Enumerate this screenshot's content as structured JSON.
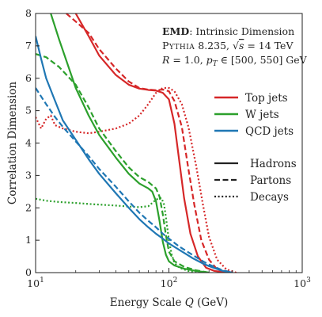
{
  "chart_data": {
    "type": "line",
    "title": "",
    "xlabel": "Energy Scale Q (GeV)",
    "ylabel": "Correlation Dimension",
    "xscale": "log",
    "xlim": [
      10,
      1000
    ],
    "ylim": [
      0,
      8
    ],
    "xticks": [
      10,
      100,
      1000
    ],
    "xtick_labels": [
      {
        "base": "10",
        "exp": "1"
      },
      {
        "base": "10",
        "exp": "2"
      },
      {
        "base": "10",
        "exp": "3"
      }
    ],
    "yticks": [
      0,
      1,
      2,
      3,
      4,
      5,
      6,
      7,
      8
    ],
    "grid": false,
    "annotation": {
      "line1_bold": "EMD",
      "line1_rest": ": Intrinsic Dimension",
      "line2": "Pythia 8.235, √s = 14 TeV",
      "line3": "R = 1.0, pT ∈ [500, 550] GeV"
    },
    "legend_jets": {
      "placement": "right",
      "entries": [
        {
          "label": "Top jets",
          "color": "#d62728"
        },
        {
          "label": "W jets",
          "color": "#2ca02c"
        },
        {
          "label": "QCD jets",
          "color": "#1f77b4"
        }
      ]
    },
    "legend_levels": {
      "placement": "right",
      "entries": [
        {
          "label": "Hadrons",
          "style": "solid"
        },
        {
          "label": "Partons",
          "style": "dashed"
        },
        {
          "label": "Decays",
          "style": "dotted"
        }
      ]
    },
    "series": [
      {
        "jet": "Top jets",
        "level": "Hadrons",
        "color": "#d62728",
        "style": "solid",
        "points": [
          [
            20,
            8.0
          ],
          [
            25,
            7.3
          ],
          [
            30,
            6.7
          ],
          [
            40,
            6.1
          ],
          [
            50,
            5.8
          ],
          [
            60,
            5.68
          ],
          [
            70,
            5.64
          ],
          [
            80,
            5.62
          ],
          [
            90,
            5.55
          ],
          [
            100,
            5.35
          ],
          [
            110,
            4.6
          ],
          [
            120,
            3.4
          ],
          [
            130,
            2.3
          ],
          [
            145,
            1.2
          ],
          [
            165,
            0.5
          ],
          [
            190,
            0.15
          ],
          [
            220,
            0.05
          ],
          [
            280,
            0.0
          ]
        ]
      },
      {
        "jet": "Top jets",
        "level": "Partons",
        "color": "#d62728",
        "style": "dashed",
        "points": [
          [
            17,
            8.0
          ],
          [
            20,
            7.75
          ],
          [
            25,
            7.4
          ],
          [
            30,
            6.9
          ],
          [
            40,
            6.3
          ],
          [
            50,
            5.9
          ],
          [
            60,
            5.7
          ],
          [
            70,
            5.65
          ],
          [
            80,
            5.63
          ],
          [
            90,
            5.65
          ],
          [
            100,
            5.6
          ],
          [
            110,
            5.3
          ],
          [
            125,
            4.5
          ],
          [
            140,
            3.2
          ],
          [
            155,
            2.1
          ],
          [
            175,
            1.0
          ],
          [
            200,
            0.4
          ],
          [
            230,
            0.1
          ],
          [
            280,
            0.0
          ]
        ]
      },
      {
        "jet": "Top jets",
        "level": "Decays",
        "color": "#d62728",
        "style": "dotted",
        "points": [
          [
            10,
            4.8
          ],
          [
            11,
            4.45
          ],
          [
            12,
            4.75
          ],
          [
            13,
            4.85
          ],
          [
            14,
            4.55
          ],
          [
            16,
            4.45
          ],
          [
            20,
            4.35
          ],
          [
            25,
            4.3
          ],
          [
            30,
            4.35
          ],
          [
            40,
            4.45
          ],
          [
            50,
            4.6
          ],
          [
            60,
            4.85
          ],
          [
            70,
            5.2
          ],
          [
            80,
            5.55
          ],
          [
            90,
            5.7
          ],
          [
            100,
            5.7
          ],
          [
            110,
            5.6
          ],
          [
            125,
            5.2
          ],
          [
            140,
            4.5
          ],
          [
            160,
            3.3
          ],
          [
            180,
            2.1
          ],
          [
            200,
            1.1
          ],
          [
            230,
            0.4
          ],
          [
            270,
            0.1
          ],
          [
            320,
            0.0
          ]
        ]
      },
      {
        "jet": "W jets",
        "level": "Hadrons",
        "color": "#2ca02c",
        "style": "solid",
        "points": [
          [
            13,
            8.0
          ],
          [
            15,
            7.2
          ],
          [
            20,
            5.7
          ],
          [
            25,
            4.85
          ],
          [
            30,
            4.25
          ],
          [
            40,
            3.55
          ],
          [
            50,
            3.05
          ],
          [
            60,
            2.75
          ],
          [
            70,
            2.6
          ],
          [
            75,
            2.5
          ],
          [
            80,
            2.2
          ],
          [
            85,
            1.6
          ],
          [
            90,
            0.95
          ],
          [
            95,
            0.55
          ],
          [
            100,
            0.35
          ],
          [
            110,
            0.22
          ],
          [
            130,
            0.12
          ],
          [
            160,
            0.05
          ],
          [
            200,
            0.0
          ]
        ]
      },
      {
        "jet": "W jets",
        "level": "Partons",
        "color": "#2ca02c",
        "style": "dashed",
        "points": [
          [
            10,
            6.75
          ],
          [
            12,
            6.65
          ],
          [
            15,
            6.35
          ],
          [
            20,
            5.8
          ],
          [
            25,
            5.1
          ],
          [
            30,
            4.45
          ],
          [
            40,
            3.75
          ],
          [
            50,
            3.25
          ],
          [
            60,
            2.95
          ],
          [
            70,
            2.8
          ],
          [
            80,
            2.6
          ],
          [
            85,
            2.35
          ],
          [
            90,
            1.8
          ],
          [
            95,
            1.15
          ],
          [
            100,
            0.65
          ],
          [
            110,
            0.35
          ],
          [
            130,
            0.18
          ],
          [
            160,
            0.07
          ],
          [
            200,
            0.0
          ]
        ]
      },
      {
        "jet": "W jets",
        "level": "Decays",
        "color": "#2ca02c",
        "style": "dotted",
        "points": [
          [
            10,
            2.28
          ],
          [
            12,
            2.22
          ],
          [
            15,
            2.18
          ],
          [
            20,
            2.15
          ],
          [
            25,
            2.12
          ],
          [
            30,
            2.1
          ],
          [
            40,
            2.07
          ],
          [
            50,
            2.04
          ],
          [
            60,
            2.02
          ],
          [
            70,
            2.05
          ],
          [
            75,
            2.15
          ],
          [
            80,
            2.25
          ],
          [
            85,
            2.3
          ],
          [
            88,
            2.3
          ],
          [
            92,
            2.1
          ],
          [
            95,
            1.7
          ],
          [
            100,
            1.0
          ],
          [
            105,
            0.55
          ],
          [
            110,
            0.3
          ],
          [
            120,
            0.15
          ],
          [
            140,
            0.05
          ],
          [
            180,
            0.0
          ]
        ]
      },
      {
        "jet": "QCD jets",
        "level": "Hadrons",
        "color": "#1f77b4",
        "style": "solid",
        "points": [
          [
            10,
            7.3
          ],
          [
            11,
            6.6
          ],
          [
            12,
            6.0
          ],
          [
            14,
            5.3
          ],
          [
            16,
            4.7
          ],
          [
            20,
            4.1
          ],
          [
            25,
            3.5
          ],
          [
            30,
            3.05
          ],
          [
            40,
            2.45
          ],
          [
            50,
            2.0
          ],
          [
            60,
            1.65
          ],
          [
            70,
            1.4
          ],
          [
            80,
            1.2
          ],
          [
            90,
            1.05
          ],
          [
            100,
            0.9
          ],
          [
            120,
            0.7
          ],
          [
            150,
            0.45
          ],
          [
            180,
            0.28
          ],
          [
            200,
            0.2
          ],
          [
            250,
            0.06
          ],
          [
            300,
            0.0
          ]
        ]
      },
      {
        "jet": "QCD jets",
        "level": "Partons",
        "color": "#1f77b4",
        "style": "dashed",
        "points": [
          [
            10,
            5.7
          ],
          [
            12,
            5.2
          ],
          [
            14,
            4.8
          ],
          [
            16,
            4.5
          ],
          [
            20,
            4.05
          ],
          [
            25,
            3.6
          ],
          [
            30,
            3.2
          ],
          [
            40,
            2.65
          ],
          [
            50,
            2.2
          ],
          [
            60,
            1.85
          ],
          [
            70,
            1.6
          ],
          [
            80,
            1.4
          ],
          [
            90,
            1.2
          ],
          [
            100,
            1.05
          ],
          [
            120,
            0.8
          ],
          [
            150,
            0.55
          ],
          [
            180,
            0.35
          ],
          [
            200,
            0.25
          ],
          [
            250,
            0.08
          ],
          [
            300,
            0.0
          ]
        ]
      }
    ]
  }
}
